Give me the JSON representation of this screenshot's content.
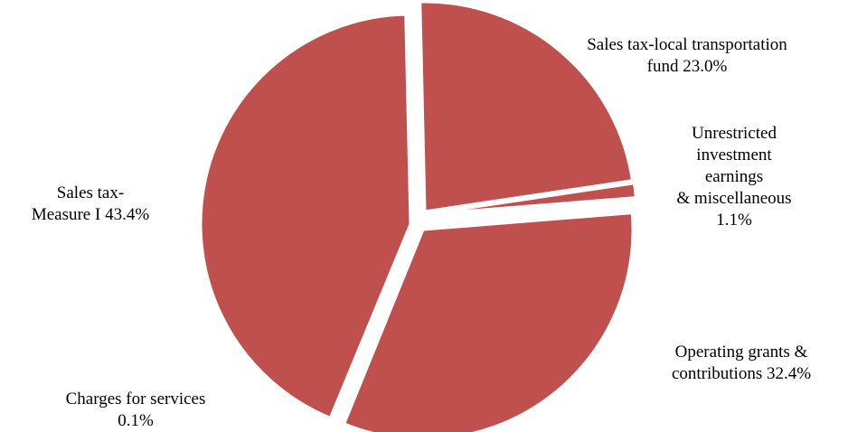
{
  "chart_data": {
    "type": "pie",
    "title": "",
    "slice_color": "#C0504D",
    "separator_color": "#FFFFFF",
    "legend": "none",
    "slices": [
      {
        "label_lines": [
          "Sales tax-local transportation",
          "fund 23.0%"
        ],
        "value": 23.0
      },
      {
        "label_lines": [
          "Unrestricted",
          "investment",
          "earnings",
          "& miscellaneous",
          "1.1%"
        ],
        "value": 1.1
      },
      {
        "label_lines": [
          "Operating grants &",
          "contributions 32.4%"
        ],
        "value": 32.4
      },
      {
        "label_lines": [
          "Charges for services",
          "0.1%"
        ],
        "value": 0.1
      },
      {
        "label_lines": [
          "Sales tax-",
          "Measure I 43.4%"
        ],
        "value": 43.4
      }
    ]
  }
}
